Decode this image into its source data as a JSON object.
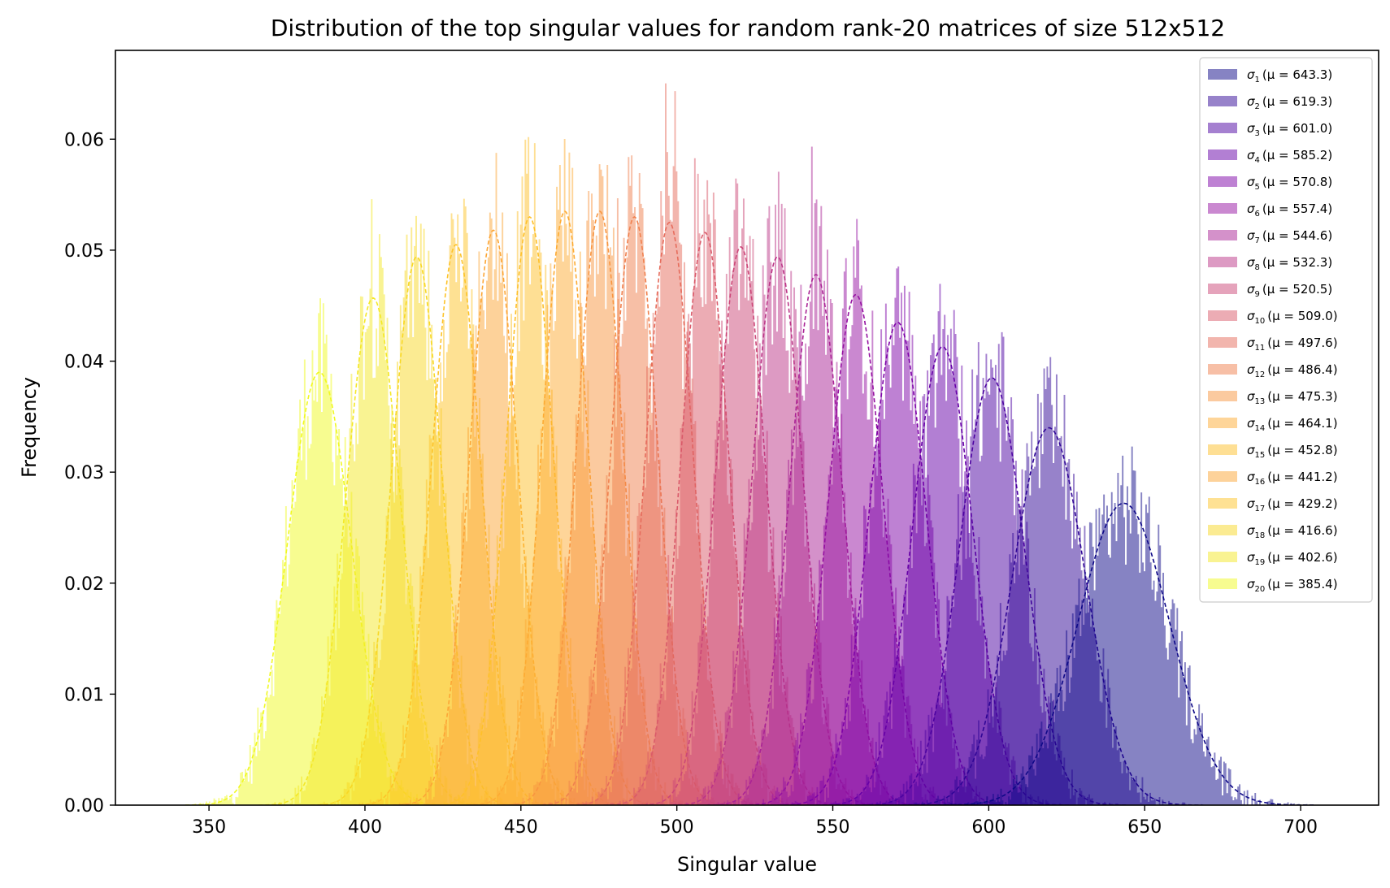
{
  "chart_data": {
    "type": "histogram",
    "title": "Distribution of the top singular values for random rank-20 matrices of size 512x512",
    "xlabel": "Singular value",
    "ylabel": "Frequency",
    "xlim": [
      320,
      725
    ],
    "ylim": [
      0,
      0.068
    ],
    "xticks": [
      350,
      400,
      450,
      500,
      550,
      600,
      650,
      700
    ],
    "yticks": [
      0.0,
      0.01,
      0.02,
      0.03,
      0.04,
      0.05,
      0.06
    ],
    "grid": false,
    "legend_position": "top-right",
    "colormap": "plasma",
    "series": [
      {
        "name": "σ1 (μ = 643.3)",
        "symbol": "σ",
        "index": "1",
        "mu_label": "(μ = 643.3)",
        "mean": 643.3,
        "peak": 0.0272,
        "color": "#0d0887"
      },
      {
        "name": "σ2 (μ = 619.3)",
        "symbol": "σ",
        "index": "2",
        "mu_label": "(μ = 619.3)",
        "mean": 619.3,
        "peak": 0.034,
        "color": "#2f0596"
      },
      {
        "name": "σ3 (μ = 601.0)",
        "symbol": "σ",
        "index": "3",
        "mu_label": "(μ = 601.0)",
        "mean": 601.0,
        "peak": 0.0385,
        "color": "#4c02a1"
      },
      {
        "name": "σ4 (μ = 585.2)",
        "symbol": "σ",
        "index": "4",
        "mu_label": "(μ = 585.2)",
        "mean": 585.2,
        "peak": 0.0413,
        "color": "#6600a7"
      },
      {
        "name": "σ5 (μ = 570.8)",
        "symbol": "σ",
        "index": "5",
        "mu_label": "(μ = 570.8)",
        "mean": 570.8,
        "peak": 0.0435,
        "color": "#7e03a8"
      },
      {
        "name": "σ6 (μ = 557.4)",
        "symbol": "σ",
        "index": "6",
        "mu_label": "(μ = 557.4)",
        "mean": 557.4,
        "peak": 0.046,
        "color": "#9511a1"
      },
      {
        "name": "σ7 (μ = 544.6)",
        "symbol": "σ",
        "index": "7",
        "mu_label": "(μ = 544.6)",
        "mean": 544.6,
        "peak": 0.0478,
        "color": "#aa2395"
      },
      {
        "name": "σ8 (μ = 532.3)",
        "symbol": "σ",
        "index": "8",
        "mu_label": "(μ = 532.3)",
        "mean": 532.3,
        "peak": 0.0494,
        "color": "#bc3587"
      },
      {
        "name": "σ9 (μ = 520.5)",
        "symbol": "σ",
        "index": "9",
        "mu_label": "(μ = 520.5)",
        "mean": 520.5,
        "peak": 0.0503,
        "color": "#cc4778"
      },
      {
        "name": "σ10 (μ = 509.0)",
        "symbol": "σ",
        "index": "10",
        "mu_label": "(μ = 509.0)",
        "mean": 509.0,
        "peak": 0.0516,
        "color": "#da5a6a"
      },
      {
        "name": "σ11 (μ = 497.6)",
        "symbol": "σ",
        "index": "11",
        "mu_label": "(μ = 497.6)",
        "mean": 497.6,
        "peak": 0.0525,
        "color": "#e66c5c"
      },
      {
        "name": "σ12 (μ = 486.4)",
        "symbol": "σ",
        "index": "12",
        "mu_label": "(μ = 486.4)",
        "mean": 486.4,
        "peak": 0.053,
        "color": "#f0804e"
      },
      {
        "name": "σ13 (μ = 475.3)",
        "symbol": "σ",
        "index": "13",
        "mu_label": "(μ = 475.3)",
        "mean": 475.3,
        "peak": 0.0535,
        "color": "#f89540"
      },
      {
        "name": "σ14 (μ = 464.1)",
        "symbol": "σ",
        "index": "14",
        "mu_label": "(μ = 464.1)",
        "mean": 464.1,
        "peak": 0.0535,
        "color": "#fdab33"
      },
      {
        "name": "σ15 (μ = 452.8)",
        "symbol": "σ",
        "index": "15",
        "mu_label": "(μ = 452.8)",
        "mean": 452.8,
        "peak": 0.053,
        "color": "#fec029"
      },
      {
        "name": "σ16 (μ = 441.2)",
        "symbol": "σ",
        "index": "16",
        "mu_label": "(μ = 441.2)",
        "mean": 441.2,
        "peak": 0.0518,
        "color": "#fca636"
      },
      {
        "name": "σ17 (μ = 429.2)",
        "symbol": "σ",
        "index": "17",
        "mu_label": "(μ = 429.2)",
        "mean": 429.2,
        "peak": 0.0505,
        "color": "#fdc328"
      },
      {
        "name": "σ18 (μ = 416.6)",
        "symbol": "σ",
        "index": "18",
        "mu_label": "(μ = 416.6)",
        "mean": 416.6,
        "peak": 0.0494,
        "color": "#f8d825"
      },
      {
        "name": "σ19 (μ = 402.6)",
        "symbol": "σ",
        "index": "19",
        "mu_label": "(μ = 402.6)",
        "mean": 402.6,
        "peak": 0.0457,
        "color": "#f4e826"
      },
      {
        "name": "σ20 (μ = 385.4)",
        "symbol": "σ",
        "index": "20",
        "mu_label": "(μ = 385.4)",
        "mean": 385.4,
        "peak": 0.039,
        "color": "#f0f921"
      }
    ]
  }
}
